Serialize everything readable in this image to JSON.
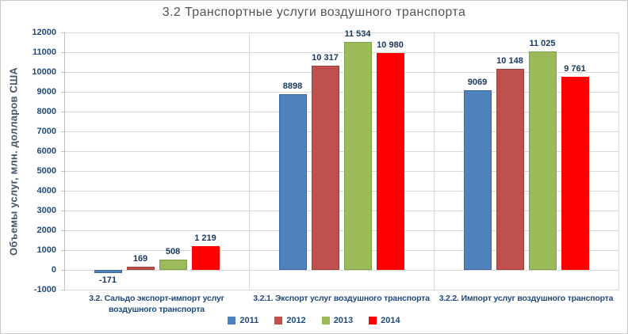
{
  "title": "3.2 Транспортные услуги воздушного транспорта",
  "chart_data": {
    "type": "bar",
    "title": "3.2 Транспортные услуги воздушного транспорта",
    "ylabel": "Объемы услуг, млн. долларов  США",
    "ylim": [
      -1000,
      12000
    ],
    "ytick_step": 1000,
    "grid": true,
    "legend_position": "bottom",
    "categories": [
      "3.2. Сальдо экспорт-импорт услуг воздушного транспорта",
      "3.2.1. Экспорт услуг воздушного транспорта",
      "3.2.2. Импорт услуг воздушного транспорта"
    ],
    "category_label_lines": [
      [
        "3.2. Сальдо экспорт-импорт услуг",
        "воздушного транспорта"
      ],
      [
        "3.2.1. Экспорт услуг воздушного транспорта"
      ],
      [
        "3.2.2. Импорт услуг воздушного транспорта"
      ]
    ],
    "series": [
      {
        "name": "2011",
        "color": "#4F81BD",
        "border": "#3E689C",
        "texture": "dots",
        "values": [
          -171,
          8898,
          9069
        ],
        "value_labels": [
          "-171",
          "8898",
          "9069"
        ]
      },
      {
        "name": "2012",
        "color": "#C0504D",
        "border": "#9C403E",
        "texture": "dots",
        "values": [
          169,
          10317,
          10148
        ],
        "value_labels": [
          "169",
          "10 317",
          "10 148"
        ]
      },
      {
        "name": "2013",
        "color": "#9BBB59",
        "border": "#7FA048",
        "texture": "dots",
        "values": [
          508,
          11534,
          11025
        ],
        "value_labels": [
          "508",
          "11 534",
          "11 025"
        ]
      },
      {
        "name": "2014",
        "color": "#FF0000",
        "border": "#FF0000",
        "texture": "solid",
        "values": [
          1219,
          10980,
          9761
        ],
        "value_labels": [
          "1 219",
          "10 980",
          "9 761"
        ]
      }
    ]
  },
  "colors": {
    "background": "#FFFFFF",
    "frame_border": "#C9C9C9",
    "gridline": "#D9D9D9",
    "axis_line": "#C0C0C0",
    "tick_text": "#1F497D",
    "category_text": "#1F497D",
    "value_label_text": "#17375E",
    "legend_text": "#1F497D",
    "title_text": "#545454",
    "ylabel_text": "#44546A"
  }
}
